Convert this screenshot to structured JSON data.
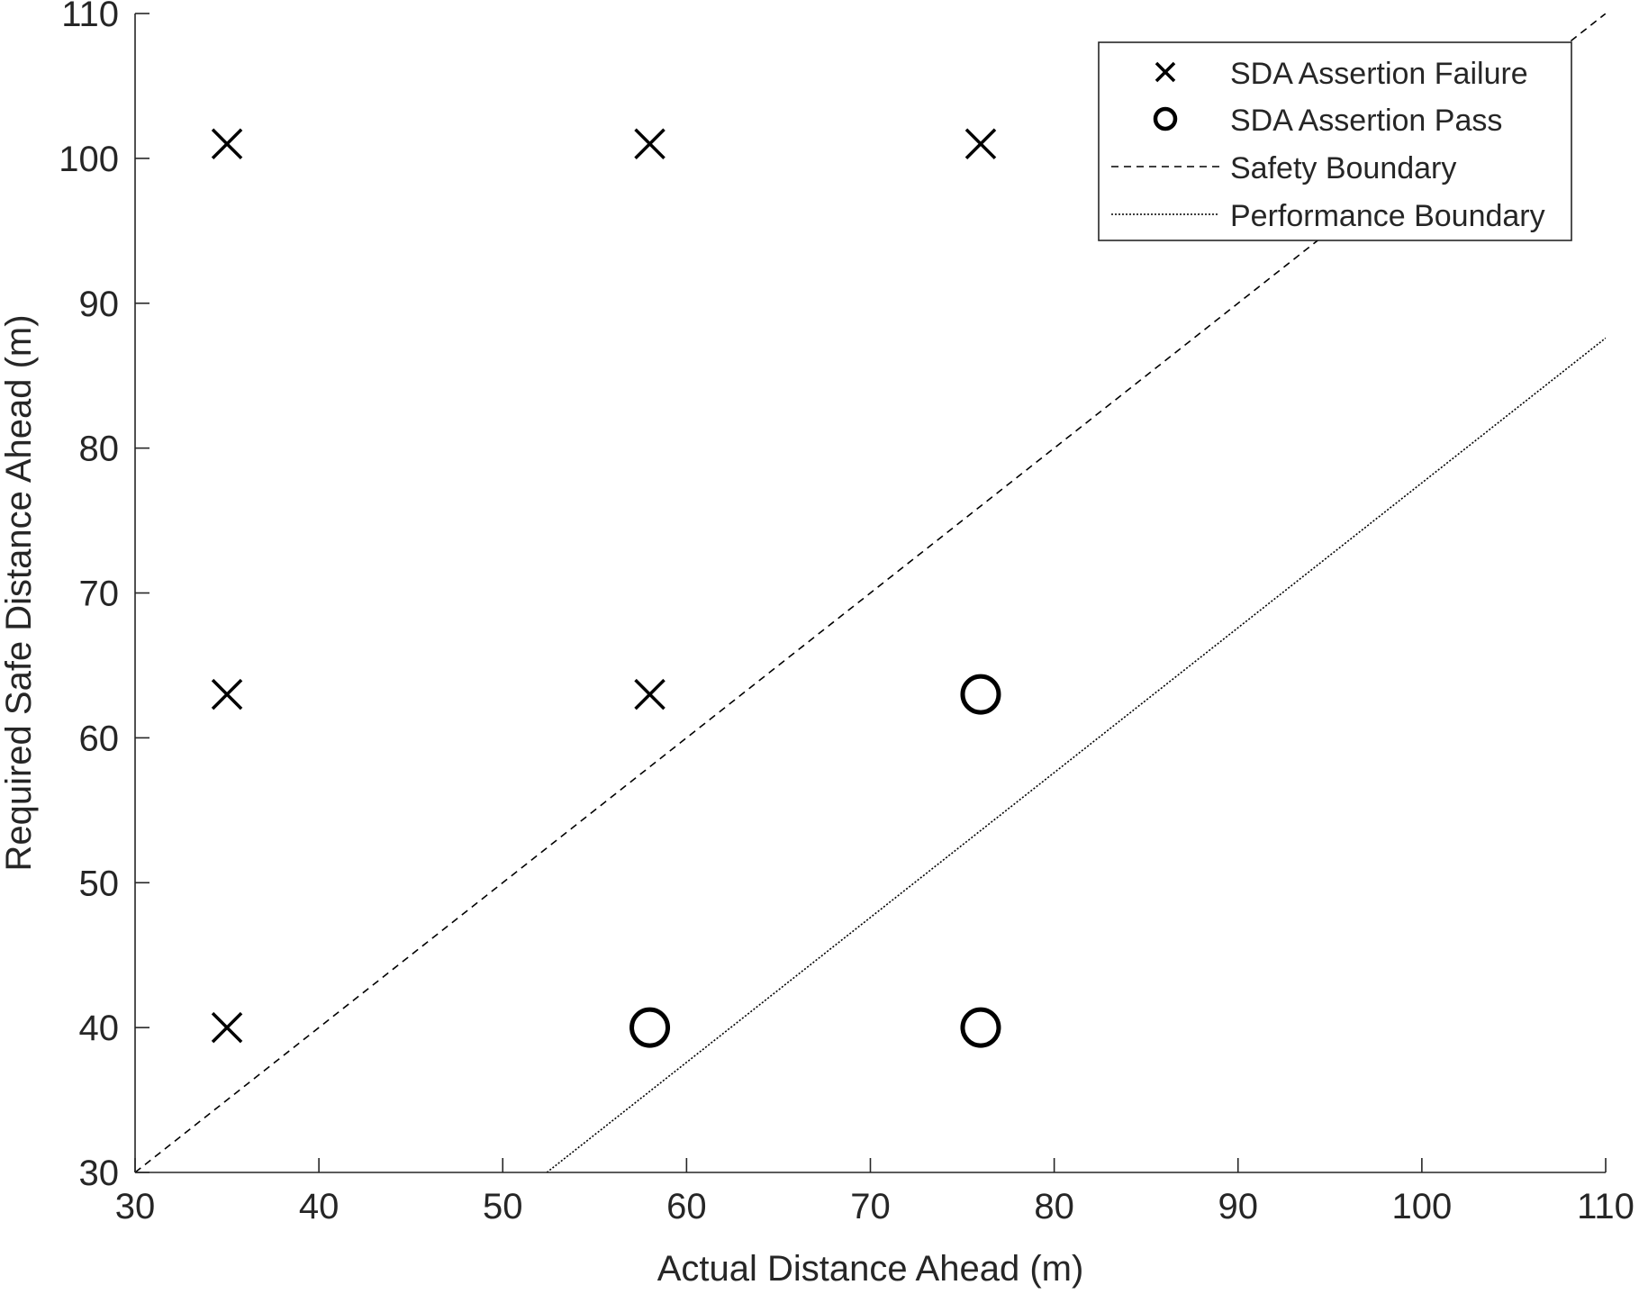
{
  "chart_data": {
    "type": "scatter",
    "title": "",
    "xlabel": "Actual Distance Ahead (m)",
    "ylabel": "Required Safe Distance Ahead (m)",
    "xlim": [
      30,
      110
    ],
    "ylim": [
      30,
      110
    ],
    "xticks": [
      30,
      40,
      50,
      60,
      70,
      80,
      90,
      100,
      110
    ],
    "yticks": [
      30,
      40,
      50,
      60,
      70,
      80,
      90,
      100,
      110
    ],
    "grid": false,
    "legend_position": "top-right",
    "series": [
      {
        "name": "SDA Assertion Failure",
        "marker": "x",
        "points": [
          {
            "x": 35,
            "y": 101
          },
          {
            "x": 58,
            "y": 101
          },
          {
            "x": 76,
            "y": 101
          },
          {
            "x": 35,
            "y": 63
          },
          {
            "x": 58,
            "y": 63
          },
          {
            "x": 35,
            "y": 40
          }
        ]
      },
      {
        "name": "SDA Assertion Pass",
        "marker": "o",
        "points": [
          {
            "x": 76,
            "y": 63
          },
          {
            "x": 58,
            "y": 40
          },
          {
            "x": 76,
            "y": 40
          }
        ]
      }
    ],
    "lines": [
      {
        "name": "Safety Boundary",
        "style": "dashed",
        "points": [
          {
            "x": 30,
            "y": 30
          },
          {
            "x": 110,
            "y": 110
          }
        ]
      },
      {
        "name": "Performance Boundary",
        "style": "dotted",
        "points": [
          {
            "x": 52.4,
            "y": 30
          },
          {
            "x": 110,
            "y": 87.6
          }
        ]
      }
    ],
    "colors": {
      "axis": "#262626",
      "markers": "#000000",
      "lines": "#000000",
      "background": "#ffffff"
    }
  }
}
